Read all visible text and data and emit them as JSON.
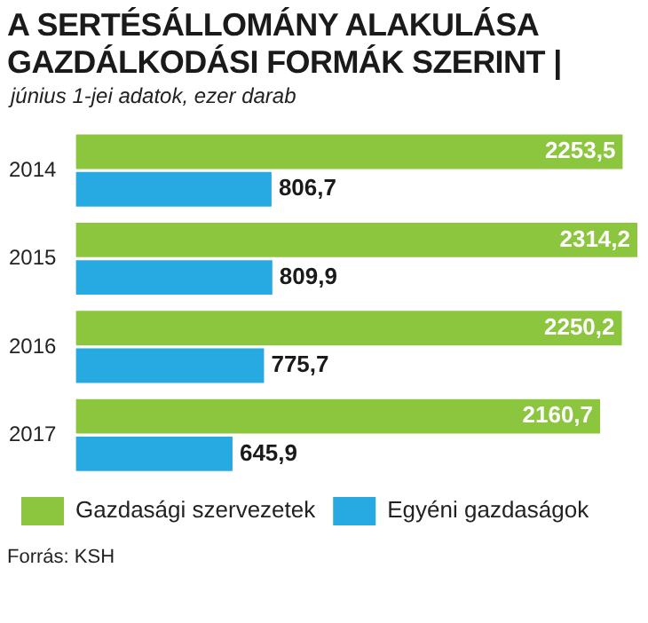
{
  "chart_data": {
    "type": "bar",
    "orientation": "horizontal",
    "title": "A SERTÉSÁLLOMÁNY ALAKULÁSA\nGAZDÁLKODÁSI FORMÁK SZERINT |",
    "subtitle": "június 1-jei adatok, ezer darab",
    "categories": [
      "2014",
      "2015",
      "2016",
      "2017"
    ],
    "series": [
      {
        "name": "Gazdasági szervezetek",
        "color": "#8cc63f",
        "values": [
          2253.5,
          2314.2,
          2250.2,
          2160.7
        ],
        "value_labels": [
          "2253,5",
          "2314,2",
          "2250,2",
          "2160,7"
        ]
      },
      {
        "name": "Egyéni gazdaságok",
        "color": "#27aae1",
        "values": [
          806.7,
          809.9,
          775.7,
          645.9
        ],
        "value_labels": [
          "806,7",
          "809,9",
          "775,7",
          "645,9"
        ]
      }
    ],
    "legend": "bottom",
    "annotations": [
      "Forrás: KSH"
    ]
  }
}
